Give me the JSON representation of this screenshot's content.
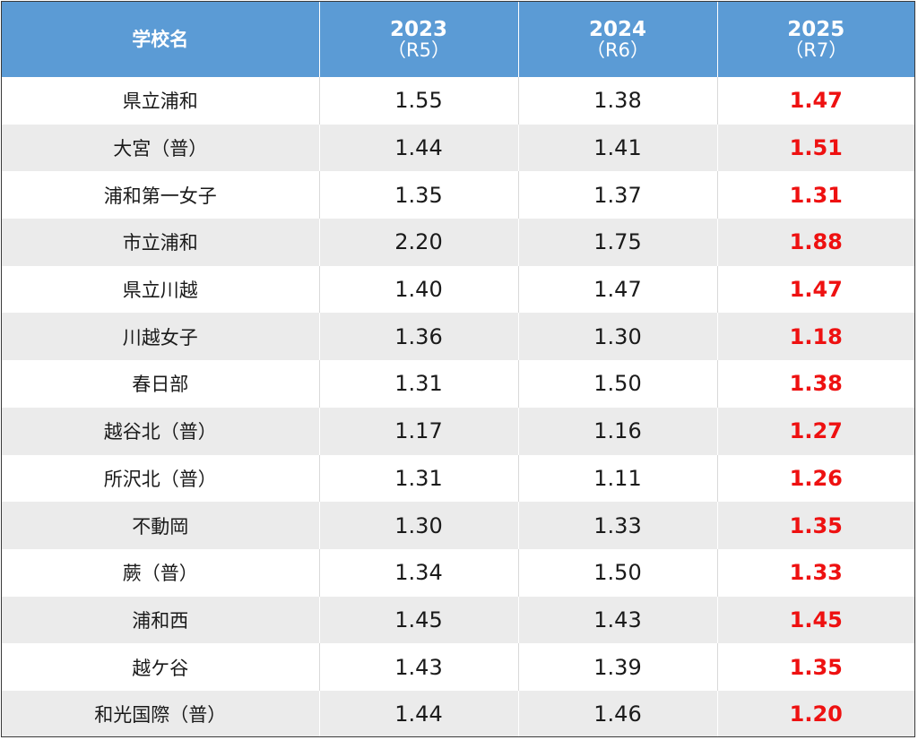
{
  "header": {
    "school_label": "学校名",
    "years": [
      {
        "year": "2023",
        "era": "（R5）"
      },
      {
        "year": "2024",
        "era": "（R6）"
      },
      {
        "year": "2025",
        "era": "（R7）"
      }
    ]
  },
  "rows": [
    {
      "school": "県立浦和",
      "v2023": "1.55",
      "v2024": "1.38",
      "v2025": "1.47"
    },
    {
      "school": "大宮（普）",
      "v2023": "1.44",
      "v2024": "1.41",
      "v2025": "1.51"
    },
    {
      "school": "浦和第一女子",
      "v2023": "1.35",
      "v2024": "1.37",
      "v2025": "1.31"
    },
    {
      "school": "市立浦和",
      "v2023": "2.20",
      "v2024": "1.75",
      "v2025": "1.88"
    },
    {
      "school": "県立川越",
      "v2023": "1.40",
      "v2024": "1.47",
      "v2025": "1.47"
    },
    {
      "school": "川越女子",
      "v2023": "1.36",
      "v2024": "1.30",
      "v2025": "1.18"
    },
    {
      "school": "春日部",
      "v2023": "1.31",
      "v2024": "1.50",
      "v2025": "1.38"
    },
    {
      "school": "越谷北（普）",
      "v2023": "1.17",
      "v2024": "1.16",
      "v2025": "1.27"
    },
    {
      "school": "所沢北（普）",
      "v2023": "1.31",
      "v2024": "1.11",
      "v2025": "1.26"
    },
    {
      "school": "不動岡",
      "v2023": "1.30",
      "v2024": "1.33",
      "v2025": "1.35"
    },
    {
      "school": "蕨（普）",
      "v2023": "1.34",
      "v2024": "1.50",
      "v2025": "1.33"
    },
    {
      "school": "浦和西",
      "v2023": "1.45",
      "v2024": "1.43",
      "v2025": "1.45"
    },
    {
      "school": "越ケ谷",
      "v2023": "1.43",
      "v2024": "1.39",
      "v2025": "1.35"
    },
    {
      "school": "和光国際（普）",
      "v2023": "1.44",
      "v2024": "1.46",
      "v2025": "1.20"
    }
  ],
  "colors": {
    "header_bg": "#5b9bd5",
    "highlight": "#ee1111",
    "stripe": "#ebebeb"
  }
}
